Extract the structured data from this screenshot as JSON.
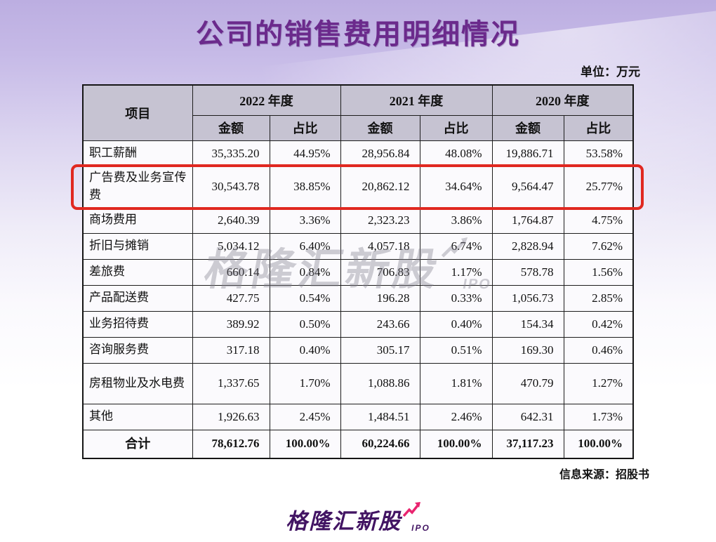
{
  "page": {
    "title": "公司的销售费用明细情况",
    "unit_note": "单位：万元",
    "source_note": "信息来源：招股书"
  },
  "watermark": {
    "text": "格隆汇新股",
    "suffix": "IPO"
  },
  "logo": {
    "text": "格隆汇新股",
    "suffix": "IPO"
  },
  "colors": {
    "title_purple": "#6B2A8C",
    "logo_purple": "#421463",
    "logo_pink": "#E9246F",
    "highlight_red": "#E02820",
    "header_bg": "#C6C3D2"
  },
  "table": {
    "header": {
      "item_label": "项目",
      "year_groups": [
        "2022 年度",
        "2021 年度",
        "2020 年度"
      ],
      "sub_headers": [
        "金额",
        "占比"
      ]
    },
    "rows": [
      {
        "item": "职工薪酬",
        "values": [
          "35,335.20",
          "44.95%",
          "28,956.84",
          "48.08%",
          "19,886.71",
          "53.58%"
        ],
        "highlight": false
      },
      {
        "item": "广告费及业务宣传费",
        "values": [
          "30,543.78",
          "38.85%",
          "20,862.12",
          "34.64%",
          "9,564.47",
          "25.77%"
        ],
        "highlight": true
      },
      {
        "item": "商场费用",
        "values": [
          "2,640.39",
          "3.36%",
          "2,323.23",
          "3.86%",
          "1,764.87",
          "4.75%"
        ],
        "highlight": false
      },
      {
        "item": "折旧与摊销",
        "values": [
          "5,034.12",
          "6.40%",
          "4,057.18",
          "6.74%",
          "2,828.94",
          "7.62%"
        ],
        "highlight": false
      },
      {
        "item": "差旅费",
        "values": [
          "660.14",
          "0.84%",
          "706.83",
          "1.17%",
          "578.78",
          "1.56%"
        ],
        "highlight": false
      },
      {
        "item": "产品配送费",
        "values": [
          "427.75",
          "0.54%",
          "196.28",
          "0.33%",
          "1,056.73",
          "2.85%"
        ],
        "highlight": false
      },
      {
        "item": "业务招待费",
        "values": [
          "389.92",
          "0.50%",
          "243.66",
          "0.40%",
          "154.34",
          "0.42%"
        ],
        "highlight": false
      },
      {
        "item": "咨询服务费",
        "values": [
          "317.18",
          "0.40%",
          "305.17",
          "0.51%",
          "169.30",
          "0.46%"
        ],
        "highlight": false
      },
      {
        "item": "房租物业及水电费",
        "values": [
          "1,337.65",
          "1.70%",
          "1,088.86",
          "1.81%",
          "470.79",
          "1.27%"
        ],
        "highlight": false
      },
      {
        "item": "其他",
        "values": [
          "1,926.63",
          "2.45%",
          "1,484.51",
          "2.46%",
          "642.31",
          "1.73%"
        ],
        "highlight": false
      }
    ],
    "total_row": {
      "item": "合计",
      "values": [
        "78,612.76",
        "100.00%",
        "60,224.66",
        "100.00%",
        "37,117.23",
        "100.00%"
      ]
    }
  }
}
